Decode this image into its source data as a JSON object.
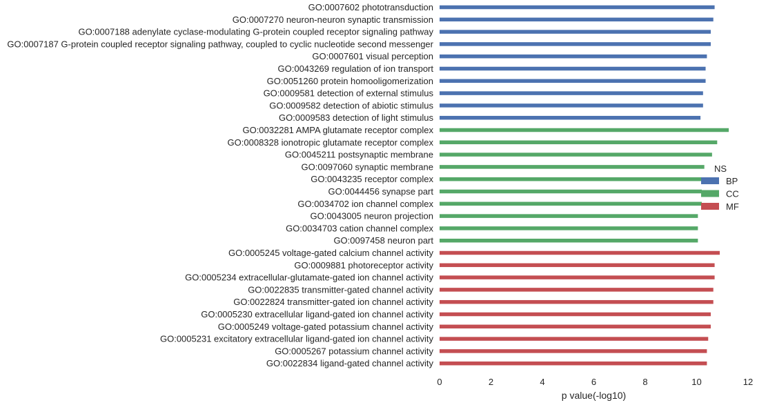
{
  "chart_data": {
    "type": "bar",
    "orientation": "horizontal",
    "xlabel": "p value(-log10)",
    "ylabel": "",
    "xlim": [
      0,
      12
    ],
    "xticks": [
      0,
      2,
      4,
      6,
      8,
      10,
      12
    ],
    "grid": false,
    "legend": {
      "title": "NS",
      "placement": "right",
      "entries": [
        {
          "name": "BP",
          "color": "#4c72b0"
        },
        {
          "name": "CC",
          "color": "#55a868"
        },
        {
          "name": "MF",
          "color": "#c44e52"
        }
      ]
    },
    "colors": {
      "BP": "#4c72b0",
      "CC": "#55a868",
      "MF": "#c44e52"
    },
    "bars": [
      {
        "label": "GO:0007602 phototransduction",
        "value": 10.7,
        "ns": "BP"
      },
      {
        "label": "GO:0007270 neuron-neuron synaptic transmission",
        "value": 10.65,
        "ns": "BP"
      },
      {
        "label": "GO:0007188 adenylate cyclase-modulating G-protein coupled receptor signaling pathway",
        "value": 10.55,
        "ns": "BP"
      },
      {
        "label": "GO:0007187 G-protein coupled receptor signaling pathway, coupled to cyclic nucleotide second messenger",
        "value": 10.55,
        "ns": "BP"
      },
      {
        "label": "GO:0007601 visual perception",
        "value": 10.4,
        "ns": "BP"
      },
      {
        "label": "GO:0043269 regulation of ion transport",
        "value": 10.35,
        "ns": "BP"
      },
      {
        "label": "GO:0051260 protein homooligomerization",
        "value": 10.35,
        "ns": "BP"
      },
      {
        "label": "GO:0009581 detection of external stimulus",
        "value": 10.25,
        "ns": "BP"
      },
      {
        "label": "GO:0009582 detection of abiotic stimulus",
        "value": 10.25,
        "ns": "BP"
      },
      {
        "label": "GO:0009583 detection of light stimulus",
        "value": 10.15,
        "ns": "BP"
      },
      {
        "label": "GO:0032281 AMPA glutamate receptor complex",
        "value": 11.25,
        "ns": "CC"
      },
      {
        "label": "GO:0008328 ionotropic glutamate receptor complex",
        "value": 10.8,
        "ns": "CC"
      },
      {
        "label": "GO:0045211 postsynaptic membrane",
        "value": 10.6,
        "ns": "CC"
      },
      {
        "label": "GO:0097060 synaptic membrane",
        "value": 10.3,
        "ns": "CC"
      },
      {
        "label": "GO:0043235 receptor complex",
        "value": 10.2,
        "ns": "CC"
      },
      {
        "label": "GO:0044456 synapse part",
        "value": 10.2,
        "ns": "CC"
      },
      {
        "label": "GO:0034702 ion channel complex",
        "value": 10.2,
        "ns": "CC"
      },
      {
        "label": "GO:0043005 neuron projection",
        "value": 10.05,
        "ns": "CC"
      },
      {
        "label": "GO:0034703 cation channel complex",
        "value": 10.05,
        "ns": "CC"
      },
      {
        "label": "GO:0097458 neuron part",
        "value": 10.05,
        "ns": "CC"
      },
      {
        "label": "GO:0005245 voltage-gated calcium channel activity",
        "value": 10.9,
        "ns": "MF"
      },
      {
        "label": "GO:0009881 photoreceptor activity",
        "value": 10.7,
        "ns": "MF"
      },
      {
        "label": "GO:0005234 extracellular-glutamate-gated ion channel activity",
        "value": 10.7,
        "ns": "MF"
      },
      {
        "label": "GO:0022835 transmitter-gated channel activity",
        "value": 10.65,
        "ns": "MF"
      },
      {
        "label": "GO:0022824 transmitter-gated ion channel activity",
        "value": 10.65,
        "ns": "MF"
      },
      {
        "label": "GO:0005230 extracellular ligand-gated ion channel activity",
        "value": 10.55,
        "ns": "MF"
      },
      {
        "label": "GO:0005249 voltage-gated potassium channel activity",
        "value": 10.55,
        "ns": "MF"
      },
      {
        "label": "GO:0005231 excitatory extracellular ligand-gated ion channel activity",
        "value": 10.45,
        "ns": "MF"
      },
      {
        "label": "GO:0005267 potassium channel activity",
        "value": 10.4,
        "ns": "MF"
      },
      {
        "label": "GO:0022834 ligand-gated channel activity",
        "value": 10.4,
        "ns": "MF"
      }
    ]
  }
}
